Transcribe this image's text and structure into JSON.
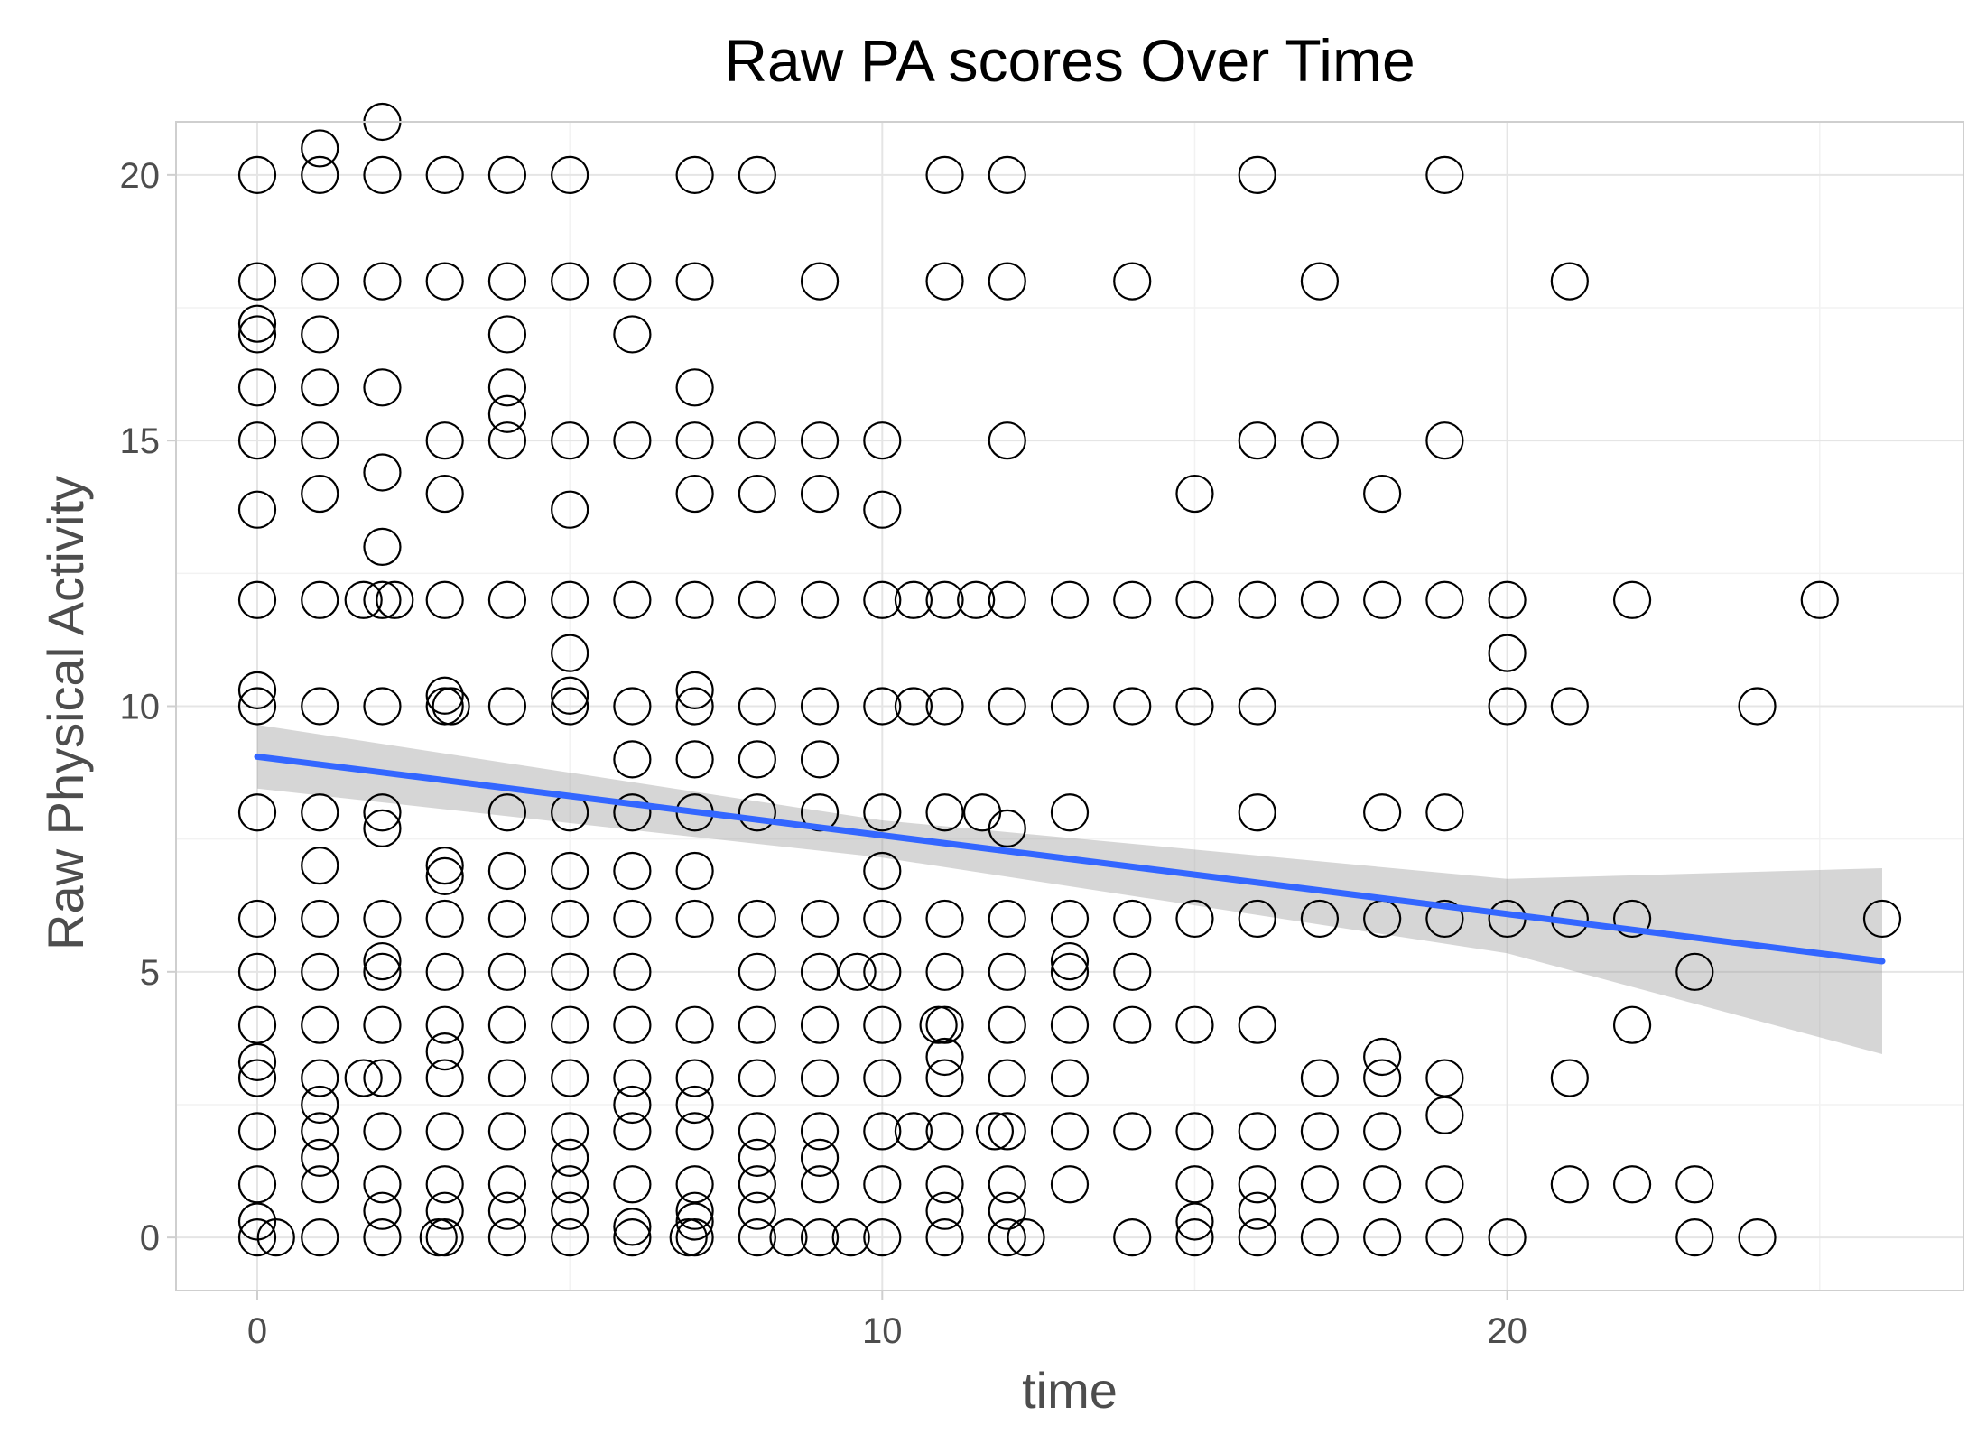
{
  "chart_data": {
    "type": "scatter",
    "title": "Raw PA scores Over Time",
    "xlabel": "time",
    "ylabel": "Raw Physical Activity",
    "xlim": [
      -1.3,
      27.3
    ],
    "ylim": [
      -1,
      21
    ],
    "x_ticks": [
      0,
      10,
      20
    ],
    "y_ticks": [
      0,
      5,
      10,
      15,
      20
    ],
    "grid": true,
    "point_color": "#000000",
    "fit_color": "#3366FF",
    "band_color": "#999999",
    "points": [
      [
        0,
        0
      ],
      [
        0,
        0.3
      ],
      [
        0,
        1
      ],
      [
        0,
        2
      ],
      [
        0,
        3
      ],
      [
        0,
        3.3
      ],
      [
        0,
        4
      ],
      [
        0,
        5
      ],
      [
        0,
        6
      ],
      [
        0,
        8
      ],
      [
        0,
        10
      ],
      [
        0,
        10.3
      ],
      [
        0,
        12
      ],
      [
        0,
        13.7
      ],
      [
        0,
        15
      ],
      [
        0,
        16
      ],
      [
        0,
        17
      ],
      [
        0,
        17.2
      ],
      [
        0,
        18
      ],
      [
        0,
        20
      ],
      [
        0.3,
        0
      ],
      [
        1,
        0
      ],
      [
        1,
        1
      ],
      [
        1,
        1.5
      ],
      [
        1,
        2
      ],
      [
        1,
        2.5
      ],
      [
        1,
        3
      ],
      [
        1,
        4
      ],
      [
        1,
        5
      ],
      [
        1,
        6
      ],
      [
        1,
        7
      ],
      [
        1,
        8
      ],
      [
        1,
        10
      ],
      [
        1,
        12
      ],
      [
        1,
        14
      ],
      [
        1,
        15
      ],
      [
        1,
        16
      ],
      [
        1,
        17
      ],
      [
        1,
        18
      ],
      [
        1,
        20
      ],
      [
        1,
        20.5
      ],
      [
        1.7,
        3
      ],
      [
        1.7,
        12
      ],
      [
        2,
        0
      ],
      [
        2,
        0.5
      ],
      [
        2,
        1
      ],
      [
        2,
        2
      ],
      [
        2,
        3
      ],
      [
        2,
        4
      ],
      [
        2,
        5
      ],
      [
        2,
        5.2
      ],
      [
        2,
        6
      ],
      [
        2,
        7.7
      ],
      [
        2,
        8
      ],
      [
        2,
        10
      ],
      [
        2,
        12
      ],
      [
        2,
        13
      ],
      [
        2,
        14.4
      ],
      [
        2,
        16
      ],
      [
        2,
        18
      ],
      [
        2,
        20
      ],
      [
        2,
        21
      ],
      [
        2.2,
        12
      ],
      [
        2.9,
        0
      ],
      [
        3,
        0
      ],
      [
        3,
        0.5
      ],
      [
        3,
        1
      ],
      [
        3,
        2
      ],
      [
        3,
        3
      ],
      [
        3,
        3.5
      ],
      [
        3,
        4
      ],
      [
        3,
        5
      ],
      [
        3,
        6
      ],
      [
        3,
        6.8
      ],
      [
        3,
        7
      ],
      [
        3,
        10
      ],
      [
        3,
        10.2
      ],
      [
        3,
        12
      ],
      [
        3,
        14
      ],
      [
        3,
        15
      ],
      [
        3,
        18
      ],
      [
        3,
        20
      ],
      [
        3.1,
        10
      ],
      [
        4,
        0
      ],
      [
        4,
        0.5
      ],
      [
        4,
        1
      ],
      [
        4,
        2
      ],
      [
        4,
        3
      ],
      [
        4,
        4
      ],
      [
        4,
        5
      ],
      [
        4,
        6
      ],
      [
        4,
        6.9
      ],
      [
        4,
        8
      ],
      [
        4,
        10
      ],
      [
        4,
        12
      ],
      [
        4,
        15
      ],
      [
        4,
        15.5
      ],
      [
        4,
        16
      ],
      [
        4,
        17
      ],
      [
        4,
        18
      ],
      [
        4,
        20
      ],
      [
        5,
        0
      ],
      [
        5,
        0.5
      ],
      [
        5,
        1
      ],
      [
        5,
        1.5
      ],
      [
        5,
        2
      ],
      [
        5,
        3
      ],
      [
        5,
        4
      ],
      [
        5,
        5
      ],
      [
        5,
        6
      ],
      [
        5,
        6.9
      ],
      [
        5,
        8
      ],
      [
        5,
        10
      ],
      [
        5,
        10.2
      ],
      [
        5,
        11
      ],
      [
        5,
        12
      ],
      [
        5,
        13.7
      ],
      [
        5,
        15
      ],
      [
        5,
        18
      ],
      [
        5,
        20
      ],
      [
        6,
        0
      ],
      [
        6,
        0.2
      ],
      [
        6,
        1
      ],
      [
        6,
        2
      ],
      [
        6,
        2.5
      ],
      [
        6,
        3
      ],
      [
        6,
        4
      ],
      [
        6,
        5
      ],
      [
        6,
        6
      ],
      [
        6,
        6.9
      ],
      [
        6,
        8
      ],
      [
        6,
        9
      ],
      [
        6,
        10
      ],
      [
        6,
        12
      ],
      [
        6,
        15
      ],
      [
        6,
        17
      ],
      [
        6,
        18
      ],
      [
        6.9,
        0
      ],
      [
        7,
        0
      ],
      [
        7,
        0.3
      ],
      [
        7,
        0.5
      ],
      [
        7,
        1
      ],
      [
        7,
        2
      ],
      [
        7,
        2.5
      ],
      [
        7,
        3
      ],
      [
        7,
        4
      ],
      [
        7,
        6
      ],
      [
        7,
        6.9
      ],
      [
        7,
        8
      ],
      [
        7,
        9
      ],
      [
        7,
        10
      ],
      [
        7,
        10.3
      ],
      [
        7,
        12
      ],
      [
        7,
        14
      ],
      [
        7,
        15
      ],
      [
        7,
        16
      ],
      [
        7,
        18
      ],
      [
        7,
        20
      ],
      [
        8,
        0
      ],
      [
        8,
        0.5
      ],
      [
        8,
        1
      ],
      [
        8,
        1.5
      ],
      [
        8,
        2
      ],
      [
        8,
        3
      ],
      [
        8,
        4
      ],
      [
        8,
        5
      ],
      [
        8,
        6
      ],
      [
        8,
        8
      ],
      [
        8,
        9
      ],
      [
        8,
        10
      ],
      [
        8,
        12
      ],
      [
        8,
        14
      ],
      [
        8,
        15
      ],
      [
        8,
        20
      ],
      [
        8.5,
        0
      ],
      [
        9,
        0
      ],
      [
        9,
        1
      ],
      [
        9,
        1.5
      ],
      [
        9,
        2
      ],
      [
        9,
        3
      ],
      [
        9,
        4
      ],
      [
        9,
        5
      ],
      [
        9,
        6
      ],
      [
        9,
        8
      ],
      [
        9,
        9
      ],
      [
        9,
        10
      ],
      [
        9,
        12
      ],
      [
        9,
        14
      ],
      [
        9,
        15
      ],
      [
        9,
        18
      ],
      [
        9.5,
        0
      ],
      [
        9.6,
        5
      ],
      [
        10,
        0
      ],
      [
        10,
        1
      ],
      [
        10,
        2
      ],
      [
        10,
        3
      ],
      [
        10,
        4
      ],
      [
        10,
        5
      ],
      [
        10,
        6
      ],
      [
        10,
        6.9
      ],
      [
        10,
        8
      ],
      [
        10,
        10
      ],
      [
        10,
        12
      ],
      [
        10,
        13.7
      ],
      [
        10,
        15
      ],
      [
        10.5,
        2
      ],
      [
        10.5,
        10
      ],
      [
        10.5,
        12
      ],
      [
        10.9,
        4
      ],
      [
        11,
        0
      ],
      [
        11,
        0.5
      ],
      [
        11,
        1
      ],
      [
        11,
        2
      ],
      [
        11,
        3
      ],
      [
        11,
        3.4
      ],
      [
        11,
        4
      ],
      [
        11,
        5
      ],
      [
        11,
        6
      ],
      [
        11,
        8
      ],
      [
        11,
        10
      ],
      [
        11,
        12
      ],
      [
        11,
        18
      ],
      [
        11,
        20
      ],
      [
        11.5,
        12
      ],
      [
        11.6,
        8
      ],
      [
        11.8,
        2
      ],
      [
        12,
        0
      ],
      [
        12,
        0.5
      ],
      [
        12,
        1
      ],
      [
        12,
        2
      ],
      [
        12,
        3
      ],
      [
        12,
        4
      ],
      [
        12,
        5
      ],
      [
        12,
        6
      ],
      [
        12,
        7.7
      ],
      [
        12,
        10
      ],
      [
        12,
        12
      ],
      [
        12,
        15
      ],
      [
        12,
        18
      ],
      [
        12,
        20
      ],
      [
        12.3,
        0
      ],
      [
        13,
        1
      ],
      [
        13,
        2
      ],
      [
        13,
        3
      ],
      [
        13,
        4
      ],
      [
        13,
        5
      ],
      [
        13,
        5.2
      ],
      [
        13,
        6
      ],
      [
        13,
        8
      ],
      [
        13,
        10
      ],
      [
        13,
        12
      ],
      [
        14,
        0
      ],
      [
        14,
        2
      ],
      [
        14,
        4
      ],
      [
        14,
        5
      ],
      [
        14,
        6
      ],
      [
        14,
        10
      ],
      [
        14,
        12
      ],
      [
        14,
        18
      ],
      [
        15,
        0
      ],
      [
        15,
        0.3
      ],
      [
        15,
        1
      ],
      [
        15,
        2
      ],
      [
        15,
        4
      ],
      [
        15,
        6
      ],
      [
        15,
        10
      ],
      [
        15,
        12
      ],
      [
        15,
        14
      ],
      [
        16,
        0
      ],
      [
        16,
        0.5
      ],
      [
        16,
        1
      ],
      [
        16,
        2
      ],
      [
        16,
        4
      ],
      [
        16,
        6
      ],
      [
        16,
        8
      ],
      [
        16,
        10
      ],
      [
        16,
        12
      ],
      [
        16,
        15
      ],
      [
        16,
        20
      ],
      [
        17,
        0
      ],
      [
        17,
        1
      ],
      [
        17,
        2
      ],
      [
        17,
        3
      ],
      [
        17,
        6
      ],
      [
        17,
        12
      ],
      [
        17,
        15
      ],
      [
        17,
        18
      ],
      [
        18,
        0
      ],
      [
        18,
        1
      ],
      [
        18,
        2
      ],
      [
        18,
        3
      ],
      [
        18,
        3.4
      ],
      [
        18,
        6
      ],
      [
        18,
        8
      ],
      [
        18,
        12
      ],
      [
        18,
        14
      ],
      [
        19,
        0
      ],
      [
        19,
        1
      ],
      [
        19,
        2.3
      ],
      [
        19,
        3
      ],
      [
        19,
        6
      ],
      [
        19,
        8
      ],
      [
        19,
        12
      ],
      [
        19,
        15
      ],
      [
        19,
        20
      ],
      [
        20,
        0
      ],
      [
        20,
        6
      ],
      [
        20,
        10
      ],
      [
        20,
        11
      ],
      [
        20,
        12
      ],
      [
        21,
        1
      ],
      [
        21,
        3
      ],
      [
        21,
        6
      ],
      [
        21,
        10
      ],
      [
        21,
        18
      ],
      [
        22,
        1
      ],
      [
        22,
        4
      ],
      [
        22,
        6
      ],
      [
        22,
        12
      ],
      [
        23,
        0
      ],
      [
        23,
        1
      ],
      [
        23,
        5
      ],
      [
        24,
        0
      ],
      [
        24,
        10
      ],
      [
        25,
        12
      ],
      [
        26,
        6
      ]
    ],
    "fit": {
      "method": "linear",
      "x_range": [
        0,
        26
      ],
      "line": [
        [
          0,
          9.05
        ],
        [
          26,
          5.2
        ]
      ],
      "ci_lower": [
        [
          0,
          8.45
        ],
        [
          10,
          7.15
        ],
        [
          20,
          5.35
        ],
        [
          26,
          3.45
        ]
      ],
      "ci_upper": [
        [
          0,
          9.65
        ],
        [
          10,
          7.85
        ],
        [
          20,
          6.75
        ],
        [
          26,
          6.95
        ]
      ]
    }
  }
}
